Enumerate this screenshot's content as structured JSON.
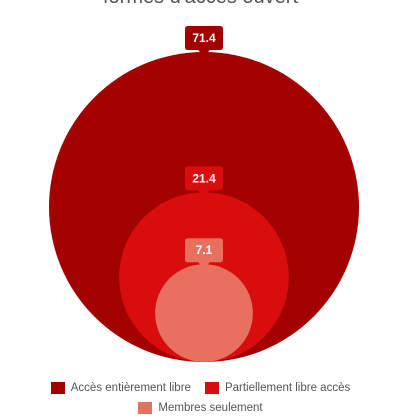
{
  "chart_data": {
    "type": "bubble",
    "title": "formes d'accès ouvert",
    "series": [
      {
        "name": "Accès entièrement libre",
        "value": 71.4,
        "color": "#a30000"
      },
      {
        "name": "Partiellement libre accès",
        "value": 21.4,
        "color": "#d90d0d"
      },
      {
        "name": "Membres seulement",
        "value": 7.1,
        "color": "#e8705f"
      }
    ],
    "value_labels": [
      "71.4",
      "21.4",
      "7.1"
    ],
    "legend_position": "bottom"
  }
}
